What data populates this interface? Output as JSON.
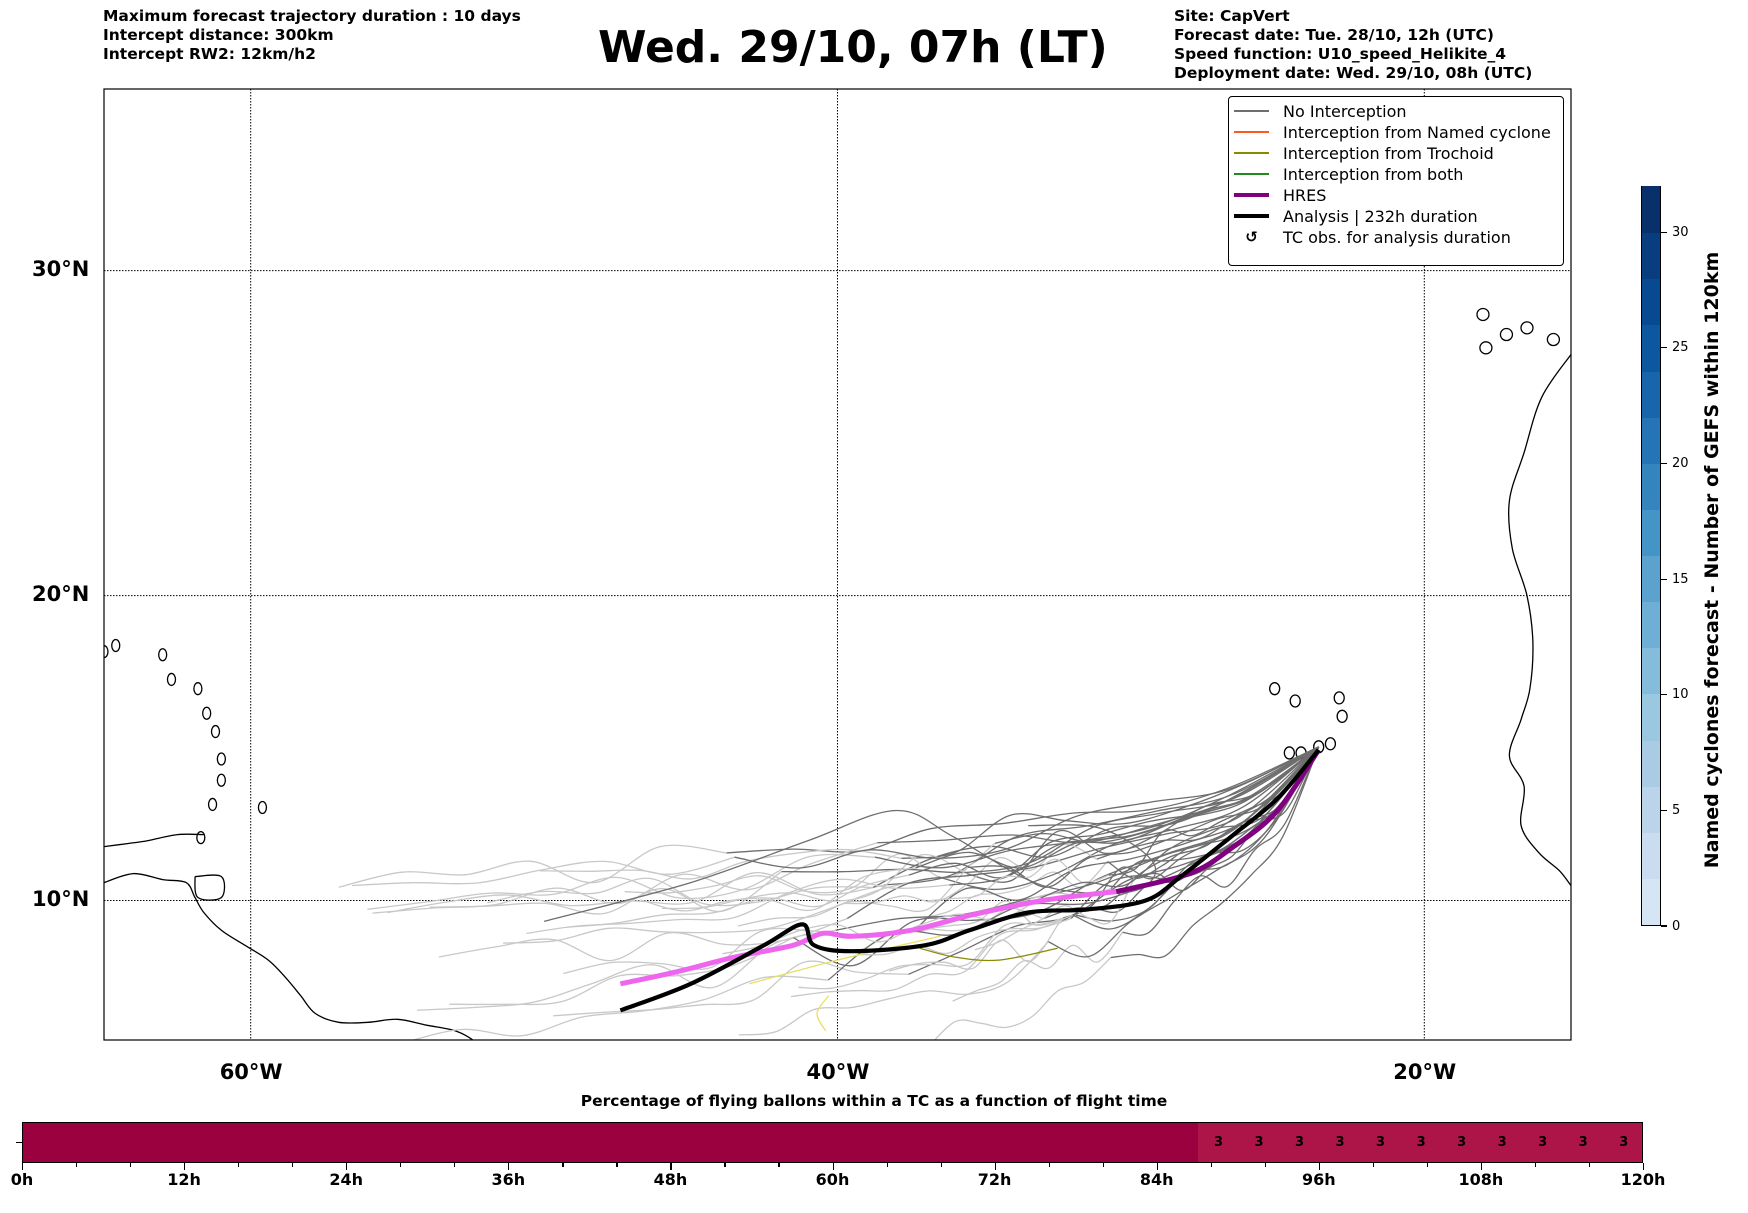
{
  "header": {
    "left_info": [
      "Maximum forecast trajectory duration : 10 days",
      "Intercept distance: 300km",
      "Intercept RW2: 12km/h2"
    ],
    "title": "Wed. 29/10, 07h (LT)",
    "right_info": [
      "Site: CapVert",
      "Forecast date: Tue. 28/10, 12h (UTC)",
      "Speed function: U10_speed_Helikite_4",
      "Deployment date: Wed. 29/10, 08h (UTC)"
    ]
  },
  "map": {
    "lat_labels": [
      {
        "lat": 30,
        "label": "30°N"
      },
      {
        "lat": 20,
        "label": "20°N"
      },
      {
        "lat": 10,
        "label": "10°N"
      }
    ],
    "lon_labels": [
      {
        "lon": -60,
        "label": "60°W"
      },
      {
        "lon": -40,
        "label": "40°W"
      },
      {
        "lon": -20,
        "label": "20°W"
      }
    ],
    "extent": {
      "lon_min": -65,
      "lon_max": -15,
      "lat_min": 5.3,
      "lat_max": 35.2
    },
    "launch_site": {
      "lon": -23.6,
      "lat": 15.1,
      "name": "CapVert"
    },
    "colors": {
      "no_interception": "#6e6e6e",
      "no_interception_light": "#c8c8c8",
      "named_cyclone": "#ff5a1e",
      "trochoid": "#8a8a00",
      "trochoid_light": "#e8e060",
      "both": "#1f8a1f",
      "hres": "#800080",
      "hres_light": "#ee66ee",
      "analysis": "#000000",
      "coast": "#000000"
    },
    "hres_track": [
      [
        -47.4,
        7.2
      ],
      [
        -45.5,
        7.6
      ],
      [
        -43.5,
        8.1
      ],
      [
        -41.5,
        8.5
      ],
      [
        -40.5,
        8.9
      ],
      [
        -39.5,
        8.8
      ],
      [
        -37.5,
        9.0
      ],
      [
        -35.5,
        9.5
      ],
      [
        -33.0,
        10.0
      ],
      [
        -30.5,
        10.3
      ],
      [
        -28.0,
        10.9
      ],
      [
        -26.5,
        11.8
      ],
      [
        -25.0,
        13.0
      ],
      [
        -23.6,
        15.0
      ]
    ],
    "analysis_track": [
      [
        -47.4,
        6.3
      ],
      [
        -45.0,
        7.2
      ],
      [
        -42.5,
        8.5
      ],
      [
        -41.2,
        9.2
      ],
      [
        -40.8,
        8.5
      ],
      [
        -39.5,
        8.3
      ],
      [
        -37.0,
        8.5
      ],
      [
        -35.5,
        9.0
      ],
      [
        -33.5,
        9.6
      ],
      [
        -31.5,
        9.7
      ],
      [
        -29.5,
        10.0
      ],
      [
        -28.3,
        10.8
      ],
      [
        -26.5,
        12.2
      ],
      [
        -25.0,
        13.4
      ],
      [
        -23.6,
        15.0
      ]
    ],
    "legend": [
      {
        "label": "No Interception",
        "style": "no_interception",
        "kind": "line"
      },
      {
        "label": "Interception from Named cyclone",
        "style": "named_cyclone",
        "kind": "line"
      },
      {
        "label": "Interception from Trochoid",
        "style": "trochoid",
        "kind": "line"
      },
      {
        "label": "Interception from both",
        "style": "both",
        "kind": "line"
      },
      {
        "label": "HRES",
        "style": "hres",
        "kind": "thick"
      },
      {
        "label": "Analysis | 232h duration",
        "style": "analysis",
        "kind": "thick"
      },
      {
        "label": "TC obs. for analysis duration",
        "style": "analysis",
        "kind": "marker",
        "glyph": "↺"
      }
    ]
  },
  "colorbar": {
    "label": "Named cyclones forecast - Number of GEFS within 120km",
    "min": 0,
    "max": 32,
    "ticks": [
      0,
      5,
      10,
      15,
      20,
      25,
      30
    ],
    "colors": [
      "#d6e5f4",
      "#cadcef",
      "#bcd4ea",
      "#a9cce4",
      "#9ac8e0",
      "#85bbdb",
      "#6faed5",
      "#5ba2cf",
      "#4594c7",
      "#3484be",
      "#2474b6",
      "#1965ac",
      "#0d57a1",
      "#084a91",
      "#083e80",
      "#08306b"
    ]
  },
  "time_bar": {
    "title": "Percentage of flying ballons within a TC as a function of flight time",
    "x_range": [
      0,
      120
    ],
    "tick_labels": [
      "0h",
      "12h",
      "24h",
      "36h",
      "48h",
      "60h",
      "72h",
      "84h",
      "96h",
      "108h",
      "120h"
    ],
    "segments": [
      {
        "start": 0,
        "end": 87,
        "percent": 0,
        "color": "#9b003f"
      },
      {
        "start": 87,
        "end": 120,
        "percent": 3,
        "color": "#ad1447"
      }
    ],
    "value_labels": [
      {
        "hour": 88.5,
        "text": "3"
      },
      {
        "hour": 91.5,
        "text": "3"
      },
      {
        "hour": 94.5,
        "text": "3"
      },
      {
        "hour": 97.5,
        "text": "3"
      },
      {
        "hour": 100.5,
        "text": "3"
      },
      {
        "hour": 103.5,
        "text": "3"
      },
      {
        "hour": 106.5,
        "text": "3"
      },
      {
        "hour": 109.5,
        "text": "3"
      },
      {
        "hour": 112.5,
        "text": "3"
      },
      {
        "hour": 115.5,
        "text": "3"
      },
      {
        "hour": 118.5,
        "text": "3"
      }
    ]
  }
}
